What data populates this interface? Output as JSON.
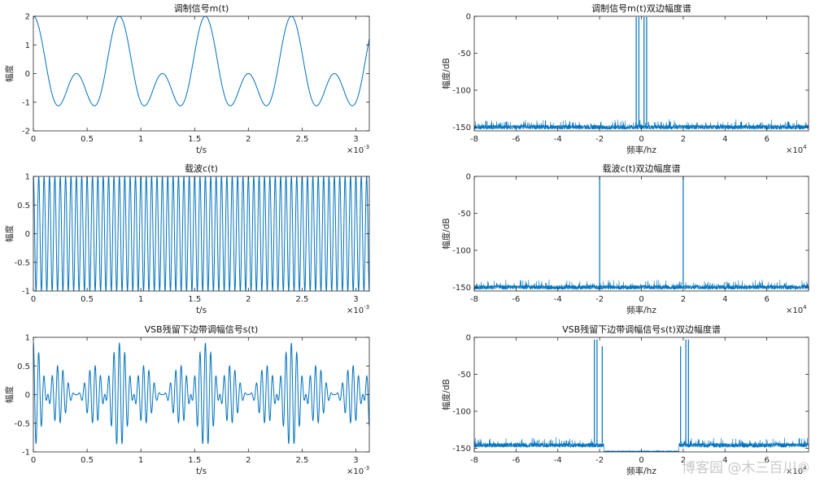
{
  "figure": {
    "axes_color": "#262626",
    "line_color": "#0072bd",
    "watermark": "博客园 @木三百川©"
  },
  "chart_data": [
    {
      "id": "m_time",
      "type": "line",
      "title": "调制信号m(t)",
      "xlabel": "t/s",
      "ylabel": "幅度",
      "xlim": [
        0,
        0.003125
      ],
      "ylim": [
        -2,
        2
      ],
      "xticks": [
        0,
        0.0005,
        0.001,
        0.0015,
        0.002,
        0.0025,
        0.003
      ],
      "xtick_labels": [
        "0",
        "0.5",
        "1",
        "1.5",
        "2",
        "2.5",
        "3"
      ],
      "yticks": [
        -2,
        -1,
        0,
        1,
        2
      ],
      "ytick_labels": [
        "-2",
        "-1",
        "0",
        "1",
        "2"
      ],
      "x_exponent": "-3",
      "signal": {
        "kind": "sum",
        "components": [
          {
            "amp": 1.0,
            "freq_hz": 1250,
            "phase": 0
          },
          {
            "amp": 1.0,
            "freq_hz": 2500,
            "phase": 0
          }
        ]
      },
      "grid": false
    },
    {
      "id": "m_spec",
      "type": "line",
      "title": "调制信号m(t)双边幅度谱",
      "xlabel": "频率/hz",
      "ylabel": "幅度/dB",
      "xlim": [
        -80000,
        80000
      ],
      "ylim": [
        -155,
        0
      ],
      "xticks": [
        -80000,
        -60000,
        -40000,
        -20000,
        0,
        20000,
        40000,
        60000
      ],
      "xtick_labels": [
        "-8",
        "-6",
        "-4",
        "-2",
        "0",
        "2",
        "4",
        "6"
      ],
      "yticks": [
        -150,
        -100,
        -50,
        0
      ],
      "ytick_labels": [
        "-150",
        "-100",
        "-50",
        "0"
      ],
      "x_exponent": "4",
      "noise_floor_db": -147,
      "noise_spread_db": 6,
      "peaks": [
        {
          "freq_hz": -2500,
          "db": -1
        },
        {
          "freq_hz": -1250,
          "db": -1
        },
        {
          "freq_hz": 1250,
          "db": -1
        },
        {
          "freq_hz": 2500,
          "db": -1
        }
      ],
      "grid": false
    },
    {
      "id": "c_time",
      "type": "line",
      "title": "载波c(t)",
      "xlabel": "t/s",
      "ylabel": "幅度",
      "xlim": [
        0,
        0.003125
      ],
      "ylim": [
        -1,
        1
      ],
      "xticks": [
        0,
        0.0005,
        0.001,
        0.0015,
        0.002,
        0.0025,
        0.003
      ],
      "xtick_labels": [
        "0",
        "0.5",
        "1",
        "1.5",
        "2",
        "2.5",
        "3"
      ],
      "yticks": [
        -1,
        -0.5,
        0,
        0.5,
        1
      ],
      "ytick_labels": [
        "-1",
        "-0.5",
        "0",
        "0.5",
        "1"
      ],
      "x_exponent": "-3",
      "signal": {
        "kind": "carrier",
        "amp": 1.0,
        "freq_hz": 20000
      },
      "grid": false
    },
    {
      "id": "c_spec",
      "type": "line",
      "title": "载波c(t)双边幅度谱",
      "xlabel": "频率/hz",
      "ylabel": "幅度/dB",
      "xlim": [
        -80000,
        80000
      ],
      "ylim": [
        -155,
        0
      ],
      "xticks": [
        -80000,
        -60000,
        -40000,
        -20000,
        0,
        20000,
        40000,
        60000
      ],
      "xtick_labels": [
        "-8",
        "-6",
        "-4",
        "-2",
        "0",
        "2",
        "4",
        "6"
      ],
      "yticks": [
        -150,
        -100,
        -50,
        0
      ],
      "ytick_labels": [
        "-150",
        "-100",
        "-50",
        "0"
      ],
      "x_exponent": "4",
      "noise_floor_db": -147,
      "noise_spread_db": 6,
      "peaks": [
        {
          "freq_hz": -20000,
          "db": 0
        },
        {
          "freq_hz": 20000,
          "db": 0
        }
      ],
      "grid": false
    },
    {
      "id": "s_time",
      "type": "line",
      "title": "VSB残留下边带调幅信号s(t)",
      "xlabel": "t/s",
      "ylabel": "幅度",
      "xlim": [
        0,
        0.003125
      ],
      "ylim": [
        -1,
        1
      ],
      "xticks": [
        0,
        0.0005,
        0.001,
        0.0015,
        0.002,
        0.0025,
        0.003
      ],
      "xtick_labels": [
        "0",
        "0.5",
        "1",
        "1.5",
        "2",
        "2.5",
        "3"
      ],
      "yticks": [
        -1,
        -0.5,
        0,
        0.5,
        1
      ],
      "ytick_labels": [
        "-1",
        "-0.5",
        "0",
        "0.5",
        "1"
      ],
      "x_exponent": "-3",
      "signal": {
        "kind": "vsb",
        "carrier_hz": 20000,
        "components": [
          {
            "amp": 0.45,
            "freq_hz": 1250
          },
          {
            "amp": 0.45,
            "freq_hz": 2500
          }
        ]
      },
      "grid": false
    },
    {
      "id": "s_spec",
      "type": "line",
      "title": "VSB残留下边带调幅信号s(t)双边幅度谱",
      "xlabel": "频率/hz",
      "ylabel": "幅度/dB",
      "xlim": [
        -80000,
        80000
      ],
      "ylim": [
        -155,
        0
      ],
      "xticks": [
        -80000,
        -60000,
        -40000,
        -20000,
        0,
        20000,
        40000,
        60000
      ],
      "xtick_labels": [
        "-8",
        "-6",
        "-4",
        "-2",
        "0",
        "2",
        "4",
        "6"
      ],
      "yticks": [
        -150,
        -100,
        -50,
        0
      ],
      "ytick_labels": [
        "-150",
        "-100",
        "-50",
        "0"
      ],
      "x_exponent": "4",
      "noise_floor_db": -143,
      "noise_spread_db": 6,
      "stopband": {
        "from_hz": -18000,
        "to_hz": 18000,
        "db": -155
      },
      "peaks": [
        {
          "freq_hz": -22500,
          "db": -3
        },
        {
          "freq_hz": -21250,
          "db": -3
        },
        {
          "freq_hz": -18750,
          "db": -12
        },
        {
          "freq_hz": 18750,
          "db": -12
        },
        {
          "freq_hz": 21250,
          "db": -3
        },
        {
          "freq_hz": 22500,
          "db": -3
        }
      ],
      "grid": false
    }
  ]
}
